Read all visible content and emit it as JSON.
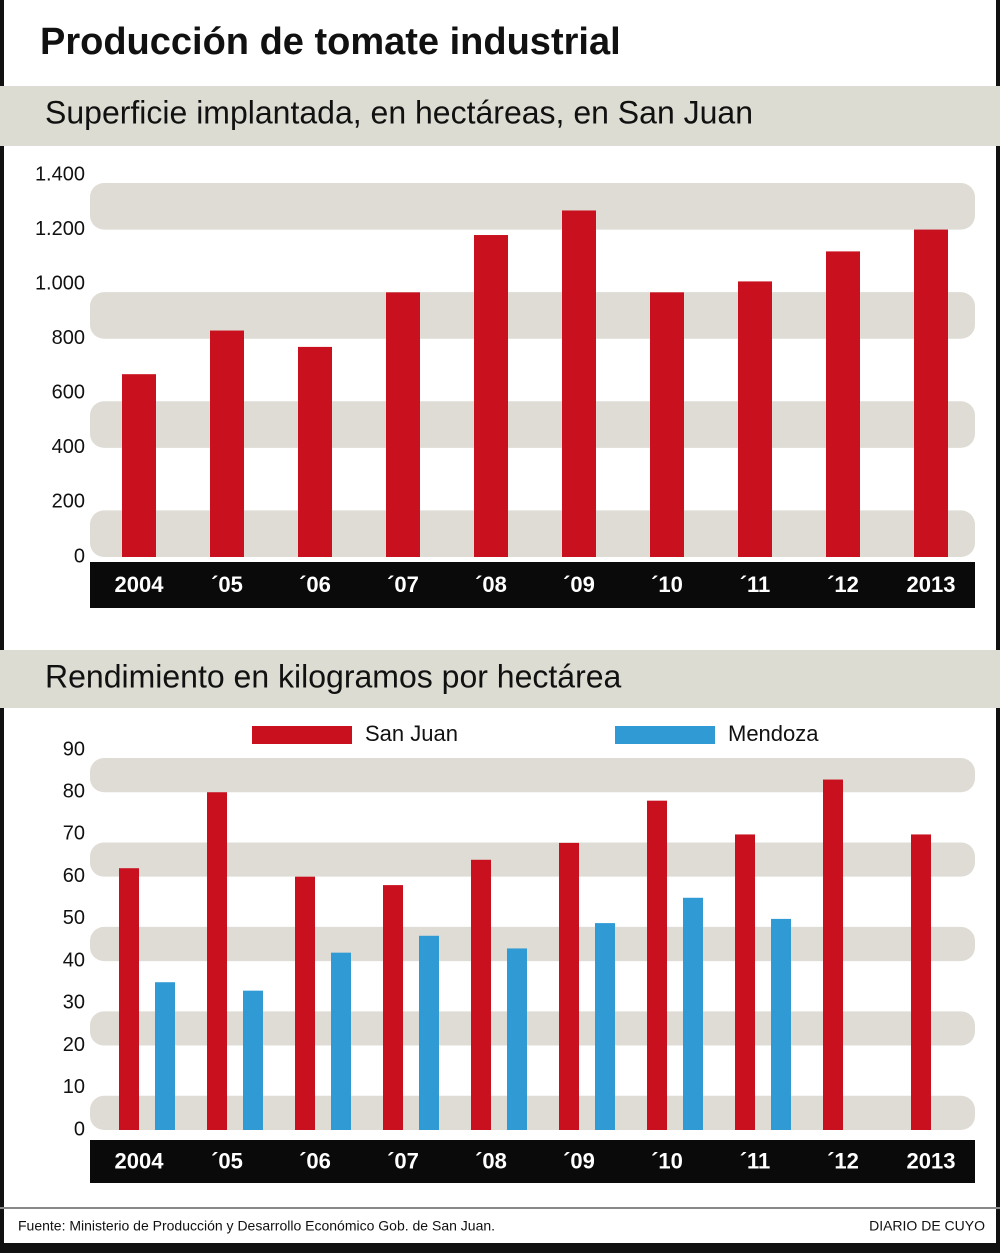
{
  "title": "Producción de tomate industrial",
  "source": "Fuente: Ministerio de Producción y Desarrollo Económico Gob. de San Juan.",
  "brand": "DIARIO DE CUYO",
  "chart_data": [
    {
      "type": "bar",
      "title": "Superficie implantada, en hectáreas, en San Juan",
      "categories": [
        "2004",
        "´05",
        "´06",
        "´07",
        "´08",
        "´09",
        "´10",
        "´11",
        "´12",
        "2013"
      ],
      "values": [
        670,
        830,
        770,
        970,
        1180,
        1270,
        970,
        1010,
        1120,
        1200
      ],
      "color": "#c8101e",
      "ylim": [
        0,
        1400
      ],
      "yticks": [
        0,
        200,
        400,
        600,
        800,
        {
          "value": 1000,
          "label": "1.000"
        },
        {
          "value": 1200,
          "label": "1.200"
        },
        {
          "value": 1400,
          "label": "1.400"
        }
      ],
      "grid": true
    },
    {
      "type": "bar",
      "title": "Rendimiento en kilogramos por hectárea",
      "categories": [
        "2004",
        "´05",
        "´06",
        "´07",
        "´08",
        "´09",
        "´10",
        "´11",
        "´12",
        "2013"
      ],
      "series": [
        {
          "name": "San Juan",
          "color": "#c8101e",
          "values": [
            62,
            80,
            60,
            58,
            64,
            68,
            78,
            70,
            83,
            70
          ]
        },
        {
          "name": "Mendoza",
          "color": "#2f9ad4",
          "values": [
            35,
            33,
            42,
            46,
            43,
            49,
            55,
            50,
            null,
            null
          ]
        }
      ],
      "ylim": [
        0,
        90
      ],
      "yticks": [
        0,
        10,
        20,
        30,
        40,
        50,
        60,
        70,
        80,
        90
      ],
      "grid": true
    }
  ]
}
